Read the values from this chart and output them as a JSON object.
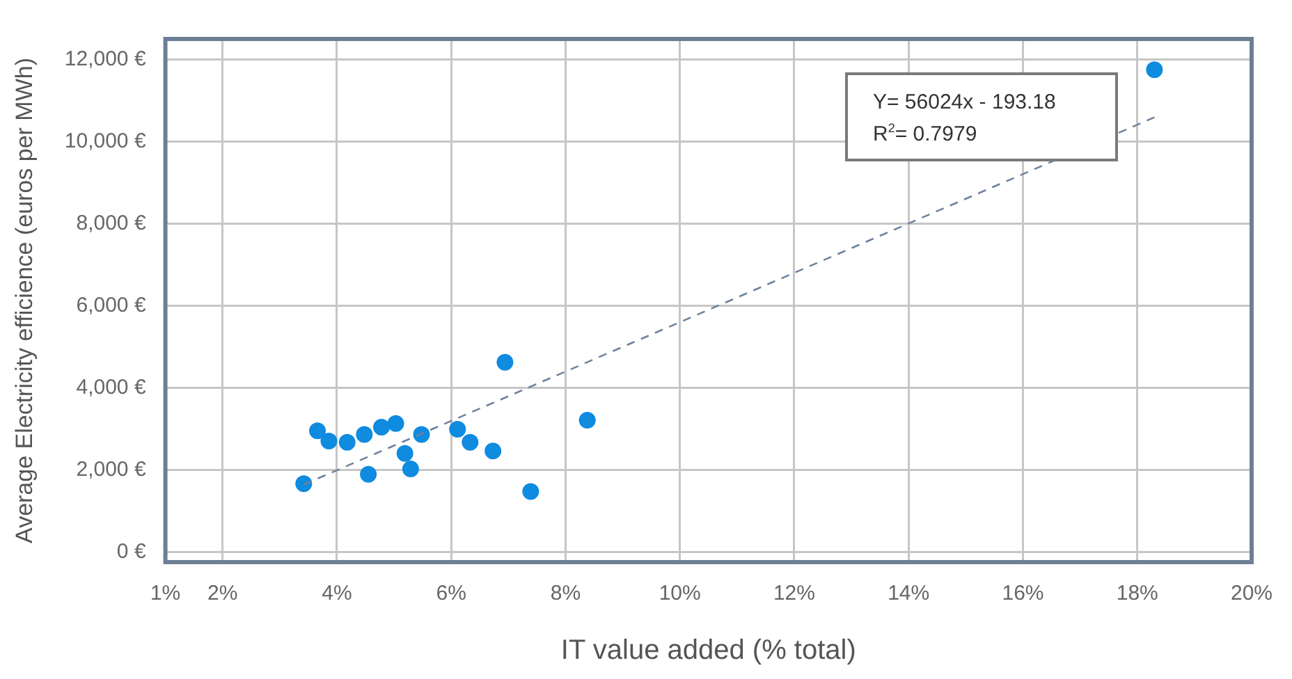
{
  "chart_data": {
    "type": "scatter",
    "xlabel": "IT value added (% total)",
    "ylabel": "Average Electricity efficience (euros per MWh)",
    "xlim": [
      1,
      20
    ],
    "xticks": [
      {
        "value": 1,
        "label": "1%"
      },
      {
        "value": 2,
        "label": "2%"
      },
      {
        "value": 4,
        "label": "4%"
      },
      {
        "value": 6,
        "label": "6%"
      },
      {
        "value": 8,
        "label": "8%"
      },
      {
        "value": 10,
        "label": "10%"
      },
      {
        "value": 12,
        "label": "12%"
      },
      {
        "value": 14,
        "label": "14%"
      },
      {
        "value": 16,
        "label": "16%"
      },
      {
        "value": 18,
        "label": "18%"
      },
      {
        "value": 20,
        "label": "20%"
      }
    ],
    "ylim": [
      -250,
      12500
    ],
    "yticks": [
      {
        "value": 0,
        "label": "0 €"
      },
      {
        "value": 2000,
        "label": "2,000 €"
      },
      {
        "value": 4000,
        "label": "4,000 €"
      },
      {
        "value": 6000,
        "label": "6,000 €"
      },
      {
        "value": 8000,
        "label": "8,000 €"
      },
      {
        "value": 10000,
        "label": "10,000 €"
      },
      {
        "value": 12000,
        "label": "12,000 €"
      }
    ],
    "grid": true,
    "legend": false,
    "marker": "circle",
    "series": [
      {
        "color": "#0f8be0",
        "x": [
          3.42,
          3.66,
          3.86,
          4.18,
          4.48,
          4.55,
          4.78,
          5.03,
          5.19,
          5.29,
          5.48,
          6.11,
          6.33,
          6.73,
          6.94,
          7.39,
          8.38,
          18.3
        ],
        "values": [
          1660,
          2950,
          2700,
          2670,
          2860,
          1890,
          3040,
          3130,
          2400,
          2020,
          2860,
          2990,
          2670,
          2460,
          4620,
          1470,
          3210,
          11750
        ]
      },
      {
        "type": "line",
        "color": "#6f829c",
        "line_style": "dashed",
        "marker": "none",
        "x": [
          3.42,
          18.3
        ],
        "values": [
          1640,
          10590
        ]
      }
    ],
    "annotations": [
      "Y= 56024x - 193.18",
      "R$^{2}$= 0.7979"
    ]
  }
}
